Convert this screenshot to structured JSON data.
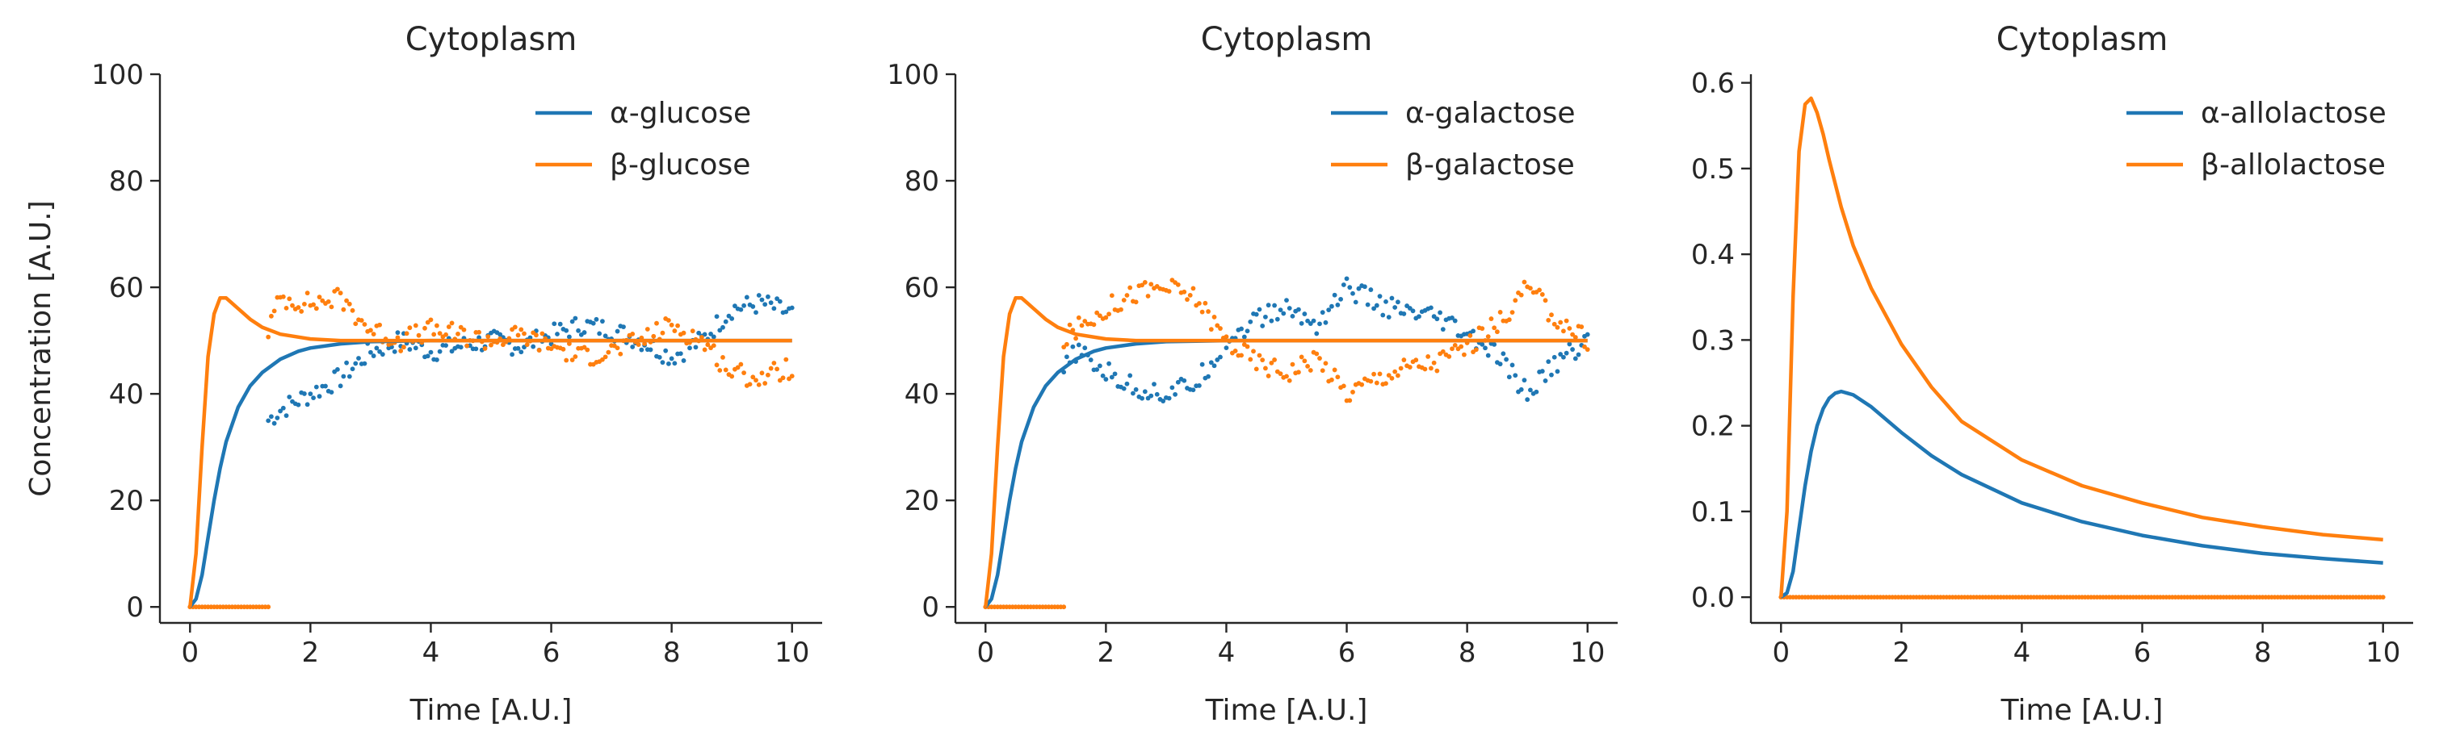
{
  "chart_data": [
    {
      "type": "line",
      "title": "Cytoplasm",
      "xlabel": "Time [A.U.]",
      "ylabel": "Concentration [A.U.]",
      "xlim": [
        -0.5,
        10.5
      ],
      "ylim": [
        -3,
        100
      ],
      "xticks": [
        0,
        2,
        4,
        6,
        8,
        10
      ],
      "yticks": [
        0,
        20,
        40,
        60,
        80,
        100
      ],
      "legend": "top-right",
      "colors": [
        "#1f77b4",
        "#ff7f0e"
      ],
      "series": [
        {
          "name": "α-glucose",
          "color": "#1f77b4",
          "x": [
            0,
            0.1,
            0.2,
            0.3,
            0.4,
            0.5,
            0.6,
            0.8,
            1.0,
            1.2,
            1.5,
            1.8,
            2.0,
            2.5,
            3.0,
            4.0,
            5.0,
            6.0,
            8.0,
            10.0
          ],
          "y": [
            0,
            1.5,
            6,
            13,
            20,
            26,
            31,
            37.5,
            41.5,
            44,
            46.5,
            48,
            48.6,
            49.4,
            49.8,
            50,
            50,
            50,
            50,
            50
          ]
        },
        {
          "name": "β-glucose",
          "color": "#ff7f0e",
          "x": [
            0,
            0.1,
            0.2,
            0.3,
            0.4,
            0.5,
            0.6,
            0.7,
            0.8,
            1.0,
            1.2,
            1.5,
            2.0,
            2.5,
            3.0,
            4.0,
            5.0,
            6.0,
            8.0,
            10.0
          ],
          "y": [
            0,
            10,
            30,
            47,
            55,
            58,
            58,
            57,
            56,
            54,
            52.5,
            51.2,
            50.3,
            50,
            50,
            50,
            50,
            50,
            50,
            50
          ]
        }
      ],
      "scatter": [
        {
          "series": "α-glucose",
          "x_start": 1.3,
          "x_end": 10,
          "color": "#1f77b4",
          "x": [
            1.3,
            1.5,
            2.0,
            2.5,
            3.0,
            3.5,
            4.0,
            4.5,
            5.0,
            5.5,
            6.0,
            6.5,
            7.0,
            7.5,
            8.0,
            8.5,
            9.0,
            9.5,
            10.0
          ],
          "y": [
            35,
            37,
            40,
            43,
            48,
            50,
            48,
            49,
            50,
            49,
            51,
            53,
            52,
            50,
            47,
            50,
            56,
            57,
            55
          ]
        },
        {
          "series": "β-glucose",
          "x_start": 1.3,
          "x_end": 10,
          "color": "#ff7f0e",
          "x": [
            1.3,
            1.5,
            2.0,
            2.5,
            3.0,
            3.5,
            4.0,
            4.5,
            5.0,
            5.5,
            6.0,
            6.5,
            7.0,
            7.5,
            8.0,
            8.5,
            9.0,
            9.5,
            10.0
          ],
          "y": [
            52,
            58,
            57,
            58,
            52,
            50,
            52,
            51,
            50,
            51,
            49,
            47,
            48,
            50,
            53,
            50,
            44,
            43,
            45
          ]
        },
        {
          "series": "baseline",
          "x": [
            0,
            1.3
          ],
          "y": [
            0,
            0
          ],
          "color": "#ff7f0e"
        }
      ]
    },
    {
      "type": "line",
      "title": "Cytoplasm",
      "xlabel": "Time [A.U.]",
      "ylabel": "",
      "xlim": [
        -0.5,
        10.5
      ],
      "ylim": [
        -3,
        100
      ],
      "xticks": [
        0,
        2,
        4,
        6,
        8,
        10
      ],
      "yticks": [
        0,
        20,
        40,
        60,
        80,
        100
      ],
      "legend": "top-right",
      "colors": [
        "#1f77b4",
        "#ff7f0e"
      ],
      "series": [
        {
          "name": "α-galactose",
          "color": "#1f77b4",
          "x": [
            0,
            0.1,
            0.2,
            0.3,
            0.4,
            0.5,
            0.6,
            0.8,
            1.0,
            1.2,
            1.5,
            1.8,
            2.0,
            2.5,
            3.0,
            4.0,
            5.0,
            6.0,
            8.0,
            10.0
          ],
          "y": [
            0,
            1.5,
            6,
            13,
            20,
            26,
            31,
            37.5,
            41.5,
            44,
            46.5,
            48,
            48.6,
            49.4,
            49.8,
            50,
            50,
            50,
            50,
            50
          ]
        },
        {
          "name": "β-galactose",
          "color": "#ff7f0e",
          "x": [
            0,
            0.1,
            0.2,
            0.3,
            0.4,
            0.5,
            0.6,
            0.7,
            0.8,
            1.0,
            1.2,
            1.5,
            2.0,
            2.5,
            3.0,
            4.0,
            5.0,
            6.0,
            8.0,
            10.0
          ],
          "y": [
            0,
            10,
            30,
            47,
            55,
            58,
            58,
            57,
            56,
            54,
            52.5,
            51.2,
            50.3,
            50,
            50,
            50,
            50,
            50,
            50,
            50
          ]
        }
      ],
      "scatter": [
        {
          "series": "α-galactose",
          "x_start": 1.3,
          "x_end": 10,
          "color": "#1f77b4",
          "x": [
            1.3,
            1.5,
            2.0,
            2.5,
            3.0,
            3.5,
            4.0,
            4.5,
            5.0,
            5.5,
            6.0,
            6.5,
            7.0,
            7.5,
            8.0,
            8.5,
            9.0,
            9.5,
            10.0
          ],
          "y": [
            44,
            48,
            44,
            41,
            40,
            42,
            50,
            54,
            56,
            53,
            60,
            57,
            55,
            54,
            51,
            47,
            40,
            46,
            50
          ]
        },
        {
          "series": "β-galactose",
          "x_start": 1.3,
          "x_end": 10,
          "color": "#ff7f0e",
          "x": [
            1.3,
            1.5,
            2.0,
            2.5,
            3.0,
            3.5,
            4.0,
            4.5,
            5.0,
            5.5,
            6.0,
            6.5,
            7.0,
            7.5,
            8.0,
            8.5,
            9.0,
            9.5,
            10.0
          ],
          "y": [
            50,
            52,
            56,
            59,
            60,
            58,
            50,
            46,
            44,
            47,
            40,
            43,
            45,
            46,
            49,
            53,
            60,
            54,
            50
          ]
        },
        {
          "series": "baseline",
          "x": [
            0,
            1.3
          ],
          "y": [
            0,
            0
          ],
          "color": "#ff7f0e"
        }
      ]
    },
    {
      "type": "line",
      "title": "Cytoplasm",
      "xlabel": "Time [A.U.]",
      "ylabel": "",
      "xlim": [
        -0.5,
        10.5
      ],
      "ylim": [
        -0.03,
        0.61
      ],
      "xticks": [
        0,
        2,
        4,
        6,
        8,
        10
      ],
      "yticks": [
        0.0,
        0.1,
        0.2,
        0.3,
        0.4,
        0.5,
        0.6
      ],
      "legend": "top-right",
      "colors": [
        "#1f77b4",
        "#ff7f0e"
      ],
      "series": [
        {
          "name": "α-allolactose",
          "color": "#1f77b4",
          "x": [
            0,
            0.1,
            0.2,
            0.3,
            0.4,
            0.5,
            0.6,
            0.7,
            0.8,
            0.9,
            1.0,
            1.2,
            1.5,
            2.0,
            2.5,
            3.0,
            4.0,
            5.0,
            6.0,
            7.0,
            8.0,
            9.0,
            10.0
          ],
          "y": [
            0,
            0.005,
            0.03,
            0.08,
            0.13,
            0.17,
            0.2,
            0.22,
            0.232,
            0.238,
            0.24,
            0.236,
            0.222,
            0.192,
            0.165,
            0.143,
            0.11,
            0.088,
            0.072,
            0.06,
            0.051,
            0.045,
            0.04
          ]
        },
        {
          "name": "β-allolactose",
          "color": "#ff7f0e",
          "x": [
            0,
            0.1,
            0.2,
            0.3,
            0.4,
            0.5,
            0.6,
            0.7,
            0.8,
            1.0,
            1.2,
            1.5,
            2.0,
            2.5,
            3.0,
            4.0,
            5.0,
            6.0,
            7.0,
            8.0,
            9.0,
            10.0
          ],
          "y": [
            0,
            0.1,
            0.35,
            0.52,
            0.575,
            0.582,
            0.565,
            0.54,
            0.51,
            0.455,
            0.41,
            0.36,
            0.295,
            0.245,
            0.205,
            0.16,
            0.13,
            0.11,
            0.093,
            0.082,
            0.073,
            0.067
          ]
        }
      ],
      "scatter": [
        {
          "series": "baseline",
          "x": [
            0,
            10
          ],
          "y": [
            0,
            0
          ],
          "color": "#ff7f0e"
        }
      ]
    }
  ]
}
